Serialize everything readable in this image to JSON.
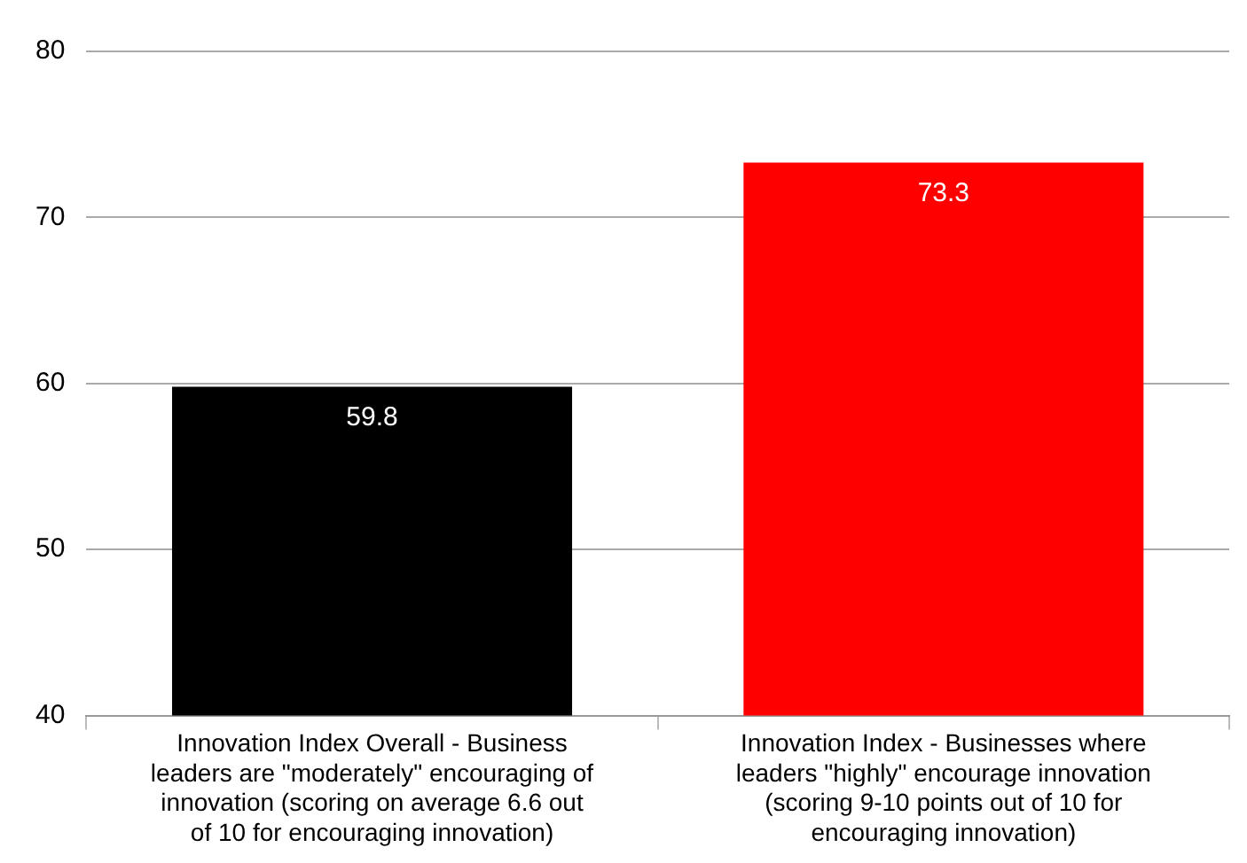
{
  "chart_data": {
    "type": "bar",
    "categories": [
      "Innovation Index Overall - Business leaders are \"moderately\" encouraging of innovation (scoring on average 6.6 out of 10 for encouraging innovation)",
      "Innovation Index - Businesses where leaders \"highly\" encourage innovation (scoring 9-10 points out of 10 for encouraging innovation)"
    ],
    "values": [
      59.8,
      73.3
    ],
    "colors": [
      "#000000",
      "#ff0000"
    ],
    "ylim": [
      40,
      80
    ],
    "yticks": [
      40,
      50,
      60,
      70,
      80
    ],
    "grid": "y",
    "data_labels": true,
    "legend": false
  }
}
